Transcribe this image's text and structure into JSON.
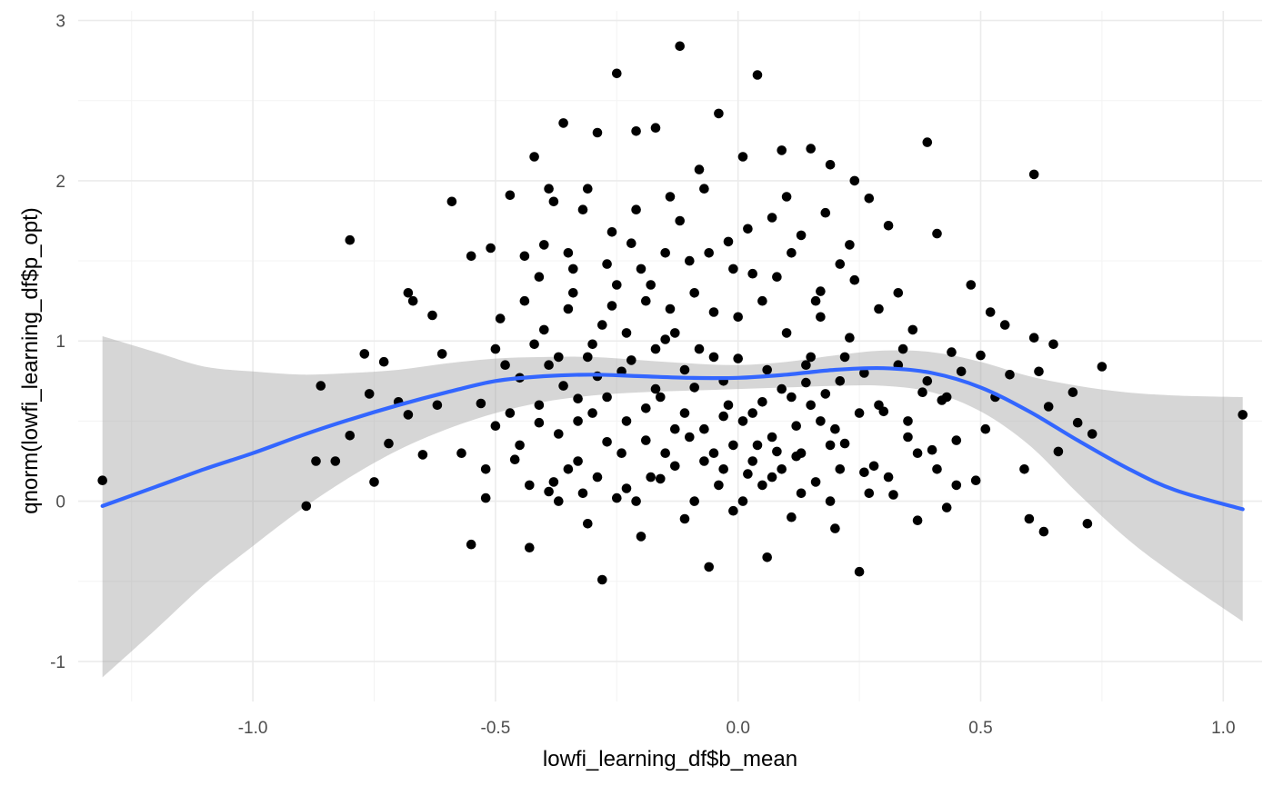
{
  "chart_data": {
    "type": "scatter",
    "title": "",
    "xlabel": "lowfi_learning_df$b_mean",
    "ylabel": "qnorm(lowfi_learning_df$p_opt)",
    "xlim": [
      -1.36,
      1.08
    ],
    "ylim": [
      -1.25,
      3.06
    ],
    "x_ticks": [
      -1.0,
      -0.5,
      0.0,
      0.5,
      1.0
    ],
    "x_tick_labels": [
      "-1.0",
      "-0.5",
      "0.0",
      "0.5",
      "1.0"
    ],
    "y_ticks": [
      -1,
      0,
      1,
      2,
      3
    ],
    "y_tick_labels": [
      "-1",
      "0",
      "1",
      "2",
      "3"
    ],
    "grid": true,
    "legend": "none",
    "colors": {
      "points": "#000000",
      "smooth_line": "#3366ff",
      "confidence_band": "#999999"
    },
    "smooth": {
      "method": "loess",
      "x": [
        -1.31,
        -1.2,
        -1.1,
        -1.0,
        -0.9,
        -0.8,
        -0.7,
        -0.6,
        -0.5,
        -0.4,
        -0.3,
        -0.2,
        -0.1,
        0.0,
        0.1,
        0.2,
        0.3,
        0.4,
        0.5,
        0.6,
        0.7,
        0.8,
        0.9,
        1.04
      ],
      "y": [
        -0.03,
        0.09,
        0.2,
        0.3,
        0.41,
        0.51,
        0.6,
        0.68,
        0.75,
        0.78,
        0.79,
        0.78,
        0.77,
        0.77,
        0.79,
        0.82,
        0.83,
        0.8,
        0.71,
        0.56,
        0.38,
        0.21,
        0.07,
        -0.05
      ],
      "lower": [
        -1.1,
        -0.8,
        -0.52,
        -0.28,
        -0.05,
        0.15,
        0.32,
        0.45,
        0.55,
        0.62,
        0.66,
        0.68,
        0.69,
        0.7,
        0.71,
        0.72,
        0.72,
        0.68,
        0.56,
        0.35,
        0.05,
        -0.23,
        -0.46,
        -0.75
      ],
      "upper": [
        1.03,
        0.93,
        0.84,
        0.81,
        0.79,
        0.8,
        0.82,
        0.86,
        0.89,
        0.9,
        0.9,
        0.88,
        0.86,
        0.85,
        0.87,
        0.91,
        0.94,
        0.93,
        0.87,
        0.78,
        0.72,
        0.68,
        0.66,
        0.65
      ]
    },
    "points": [
      {
        "x": -1.31,
        "y": 0.13
      },
      {
        "x": -0.89,
        "y": -0.03
      },
      {
        "x": -0.86,
        "y": 0.72
      },
      {
        "x": -0.8,
        "y": 1.63
      },
      {
        "x": -0.87,
        "y": 0.25
      },
      {
        "x": -0.83,
        "y": 0.25
      },
      {
        "x": -0.8,
        "y": 0.41
      },
      {
        "x": -0.77,
        "y": 0.92
      },
      {
        "x": -0.76,
        "y": 0.67
      },
      {
        "x": -0.75,
        "y": 0.12
      },
      {
        "x": -0.73,
        "y": 0.87
      },
      {
        "x": -0.72,
        "y": 0.36
      },
      {
        "x": -0.7,
        "y": 0.62
      },
      {
        "x": -0.68,
        "y": 0.54
      },
      {
        "x": -0.68,
        "y": 1.3
      },
      {
        "x": -0.67,
        "y": 1.25
      },
      {
        "x": -0.65,
        "y": 0.29
      },
      {
        "x": -0.63,
        "y": 1.16
      },
      {
        "x": -0.62,
        "y": 0.6
      },
      {
        "x": -0.61,
        "y": 0.92
      },
      {
        "x": -0.59,
        "y": 1.87
      },
      {
        "x": -0.57,
        "y": 0.3
      },
      {
        "x": -0.55,
        "y": 1.53
      },
      {
        "x": -0.55,
        "y": -0.27
      },
      {
        "x": -0.53,
        "y": 0.61
      },
      {
        "x": -0.52,
        "y": 0.02
      },
      {
        "x": -0.51,
        "y": 1.58
      },
      {
        "x": -0.5,
        "y": 0.47
      },
      {
        "x": -0.49,
        "y": 1.14
      },
      {
        "x": -0.47,
        "y": 1.91
      },
      {
        "x": -0.46,
        "y": 0.26
      },
      {
        "x": -0.45,
        "y": 0.77
      },
      {
        "x": -0.44,
        "y": 1.53
      },
      {
        "x": -0.43,
        "y": -0.29
      },
      {
        "x": -0.42,
        "y": 2.15
      },
      {
        "x": -0.41,
        "y": 0.49
      },
      {
        "x": -0.4,
        "y": 1.07
      },
      {
        "x": -0.39,
        "y": 0.06
      },
      {
        "x": -0.38,
        "y": 1.87
      },
      {
        "x": -0.37,
        "y": 0.9
      },
      {
        "x": -0.36,
        "y": 2.36
      },
      {
        "x": -0.35,
        "y": 0.2
      },
      {
        "x": -0.34,
        "y": 1.45
      },
      {
        "x": -0.33,
        "y": 0.64
      },
      {
        "x": -0.32,
        "y": 1.82
      },
      {
        "x": -0.31,
        "y": -0.14
      },
      {
        "x": -0.3,
        "y": 0.98
      },
      {
        "x": -0.29,
        "y": 2.3
      },
      {
        "x": -0.28,
        "y": -0.49
      },
      {
        "x": -0.27,
        "y": 0.37
      },
      {
        "x": -0.26,
        "y": 1.22
      },
      {
        "x": -0.25,
        "y": 2.67
      },
      {
        "x": -0.24,
        "y": 0.81
      },
      {
        "x": -0.23,
        "y": 0.08
      },
      {
        "x": -0.22,
        "y": 1.61
      },
      {
        "x": -0.21,
        "y": 2.31
      },
      {
        "x": -0.2,
        "y": -0.22
      },
      {
        "x": -0.19,
        "y": 0.58
      },
      {
        "x": -0.18,
        "y": 1.35
      },
      {
        "x": -0.17,
        "y": 2.33
      },
      {
        "x": -0.16,
        "y": 0.14
      },
      {
        "x": -0.15,
        "y": 1.01
      },
      {
        "x": -0.14,
        "y": 1.9
      },
      {
        "x": -0.13,
        "y": 0.45
      },
      {
        "x": -0.12,
        "y": 2.84
      },
      {
        "x": -0.11,
        "y": -0.11
      },
      {
        "x": -0.1,
        "y": 1.5
      },
      {
        "x": -0.09,
        "y": 0.71
      },
      {
        "x": -0.08,
        "y": 2.07
      },
      {
        "x": -0.07,
        "y": 0.25
      },
      {
        "x": -0.06,
        "y": -0.41
      },
      {
        "x": -0.05,
        "y": 1.18
      },
      {
        "x": -0.04,
        "y": 2.42
      },
      {
        "x": -0.03,
        "y": 0.53
      },
      {
        "x": -0.02,
        "y": 1.62
      },
      {
        "x": -0.01,
        "y": -0.06
      },
      {
        "x": 0.0,
        "y": 0.89
      },
      {
        "x": 0.01,
        "y": 2.15
      },
      {
        "x": 0.02,
        "y": 0.17
      },
      {
        "x": 0.03,
        "y": 1.42
      },
      {
        "x": 0.04,
        "y": 2.66
      },
      {
        "x": 0.05,
        "y": 0.62
      },
      {
        "x": 0.06,
        "y": -0.35
      },
      {
        "x": 0.07,
        "y": 1.77
      },
      {
        "x": 0.08,
        "y": 0.31
      },
      {
        "x": 0.09,
        "y": 2.19
      },
      {
        "x": 0.1,
        "y": 1.05
      },
      {
        "x": 0.11,
        "y": -0.1
      },
      {
        "x": 0.12,
        "y": 0.47
      },
      {
        "x": 0.13,
        "y": 1.66
      },
      {
        "x": 0.14,
        "y": 0.85
      },
      {
        "x": 0.15,
        "y": 2.2
      },
      {
        "x": 0.16,
        "y": 0.12
      },
      {
        "x": 0.17,
        "y": 1.31
      },
      {
        "x": 0.18,
        "y": 0.67
      },
      {
        "x": 0.19,
        "y": 2.1
      },
      {
        "x": 0.2,
        "y": -0.17
      },
      {
        "x": 0.21,
        "y": 1.48
      },
      {
        "x": 0.22,
        "y": 0.36
      },
      {
        "x": 0.23,
        "y": 1.02
      },
      {
        "x": 0.24,
        "y": 2.0
      },
      {
        "x": 0.25,
        "y": -0.44
      },
      {
        "x": 0.26,
        "y": 0.8
      },
      {
        "x": 0.27,
        "y": 1.89
      },
      {
        "x": 0.28,
        "y": 0.22
      },
      {
        "x": 0.29,
        "y": 1.2
      },
      {
        "x": 0.3,
        "y": 0.56
      },
      {
        "x": 0.31,
        "y": 1.72
      },
      {
        "x": 0.32,
        "y": 0.04
      },
      {
        "x": 0.33,
        "y": 1.3
      },
      {
        "x": 0.34,
        "y": 0.95
      },
      {
        "x": 0.35,
        "y": 0.4
      },
      {
        "x": 0.36,
        "y": 1.07
      },
      {
        "x": 0.37,
        "y": -0.12
      },
      {
        "x": 0.38,
        "y": 0.68
      },
      {
        "x": 0.39,
        "y": 2.24
      },
      {
        "x": 0.4,
        "y": 0.32
      },
      {
        "x": 0.41,
        "y": 1.67
      },
      {
        "x": 0.42,
        "y": 0.63
      },
      {
        "x": 0.43,
        "y": -0.04
      },
      {
        "x": 0.44,
        "y": 0.93
      },
      {
        "x": 0.45,
        "y": 0.38
      },
      {
        "x": 0.46,
        "y": 0.81
      },
      {
        "x": 0.48,
        "y": 1.35
      },
      {
        "x": 0.49,
        "y": 0.13
      },
      {
        "x": 0.5,
        "y": 0.91
      },
      {
        "x": 0.51,
        "y": 0.45
      },
      {
        "x": 0.52,
        "y": 1.18
      },
      {
        "x": 0.53,
        "y": 0.65
      },
      {
        "x": 0.55,
        "y": 1.1
      },
      {
        "x": 0.56,
        "y": 0.79
      },
      {
        "x": 0.59,
        "y": 0.2
      },
      {
        "x": 0.6,
        "y": -0.11
      },
      {
        "x": 0.61,
        "y": 2.04
      },
      {
        "x": 0.61,
        "y": 1.02
      },
      {
        "x": 0.62,
        "y": 0.81
      },
      {
        "x": 0.63,
        "y": -0.19
      },
      {
        "x": 0.64,
        "y": 0.59
      },
      {
        "x": 0.65,
        "y": 0.98
      },
      {
        "x": 0.66,
        "y": 0.31
      },
      {
        "x": 0.69,
        "y": 0.68
      },
      {
        "x": 0.7,
        "y": 0.49
      },
      {
        "x": 0.72,
        "y": -0.14
      },
      {
        "x": 0.73,
        "y": 0.42
      },
      {
        "x": 0.75,
        "y": 0.84
      },
      {
        "x": 1.04,
        "y": 0.54
      },
      {
        "x": -0.45,
        "y": 0.35
      },
      {
        "x": -0.42,
        "y": 0.98
      },
      {
        "x": -0.4,
        "y": 1.6
      },
      {
        "x": -0.38,
        "y": 0.12
      },
      {
        "x": -0.36,
        "y": 0.72
      },
      {
        "x": -0.34,
        "y": 1.3
      },
      {
        "x": -0.32,
        "y": 0.05
      },
      {
        "x": -0.3,
        "y": 0.55
      },
      {
        "x": -0.28,
        "y": 1.1
      },
      {
        "x": -0.26,
        "y": 1.68
      },
      {
        "x": -0.24,
        "y": 0.3
      },
      {
        "x": -0.22,
        "y": 0.88
      },
      {
        "x": -0.2,
        "y": 1.45
      },
      {
        "x": -0.18,
        "y": 0.15
      },
      {
        "x": -0.16,
        "y": 0.65
      },
      {
        "x": -0.14,
        "y": 1.2
      },
      {
        "x": -0.12,
        "y": 1.75
      },
      {
        "x": -0.1,
        "y": 0.4
      },
      {
        "x": -0.08,
        "y": 0.95
      },
      {
        "x": -0.06,
        "y": 1.55
      },
      {
        "x": -0.04,
        "y": 0.1
      },
      {
        "x": -0.02,
        "y": 0.6
      },
      {
        "x": 0.0,
        "y": 1.15
      },
      {
        "x": 0.02,
        "y": 1.7
      },
      {
        "x": 0.04,
        "y": 0.35
      },
      {
        "x": 0.06,
        "y": 0.82
      },
      {
        "x": 0.08,
        "y": 1.4
      },
      {
        "x": 0.1,
        "y": 1.9
      },
      {
        "x": 0.12,
        "y": 0.28
      },
      {
        "x": 0.14,
        "y": 0.74
      },
      {
        "x": 0.16,
        "y": 1.25
      },
      {
        "x": 0.18,
        "y": 1.8
      },
      {
        "x": 0.2,
        "y": 0.45
      },
      {
        "x": 0.22,
        "y": 0.9
      },
      {
        "x": 0.24,
        "y": 1.38
      },
      {
        "x": 0.26,
        "y": 0.18
      },
      {
        "x": -0.48,
        "y": 0.85
      },
      {
        "x": -0.44,
        "y": 1.25
      },
      {
        "x": -0.41,
        "y": 0.6
      },
      {
        "x": -0.39,
        "y": 1.95
      },
      {
        "x": -0.37,
        "y": 0.42
      },
      {
        "x": -0.35,
        "y": 1.55
      },
      {
        "x": -0.33,
        "y": 0.25
      },
      {
        "x": -0.31,
        "y": 1.95
      },
      {
        "x": -0.29,
        "y": 0.78
      },
      {
        "x": -0.27,
        "y": 1.48
      },
      {
        "x": -0.25,
        "y": 0.02
      },
      {
        "x": -0.23,
        "y": 1.05
      },
      {
        "x": -0.21,
        "y": 1.82
      },
      {
        "x": -0.19,
        "y": 0.38
      },
      {
        "x": -0.17,
        "y": 0.95
      },
      {
        "x": -0.15,
        "y": 1.55
      },
      {
        "x": -0.13,
        "y": 0.22
      },
      {
        "x": -0.11,
        "y": 0.82
      },
      {
        "x": -0.09,
        "y": 1.3
      },
      {
        "x": -0.07,
        "y": 1.95
      },
      {
        "x": -0.05,
        "y": 0.3
      },
      {
        "x": -0.03,
        "y": 0.75
      },
      {
        "x": -0.01,
        "y": 1.45
      },
      {
        "x": 0.01,
        "y": 0.0
      },
      {
        "x": 0.03,
        "y": 0.55
      },
      {
        "x": 0.05,
        "y": 1.25
      },
      {
        "x": 0.07,
        "y": 0.15
      },
      {
        "x": 0.09,
        "y": 0.7
      },
      {
        "x": 0.11,
        "y": 1.55
      },
      {
        "x": 0.13,
        "y": 0.05
      },
      {
        "x": 0.15,
        "y": 0.6
      },
      {
        "x": 0.17,
        "y": 1.15
      },
      {
        "x": 0.19,
        "y": 0.35
      },
      {
        "x": 0.21,
        "y": 0.75
      },
      {
        "x": 0.23,
        "y": 1.6
      },
      {
        "x": 0.25,
        "y": 0.55
      },
      {
        "x": -0.52,
        "y": 0.2
      },
      {
        "x": -0.5,
        "y": 0.95
      },
      {
        "x": -0.47,
        "y": 0.55
      },
      {
        "x": -0.43,
        "y": 0.1
      },
      {
        "x": -0.41,
        "y": 1.4
      },
      {
        "x": -0.39,
        "y": 0.85
      },
      {
        "x": -0.37,
        "y": 0.0
      },
      {
        "x": -0.35,
        "y": 1.2
      },
      {
        "x": -0.33,
        "y": 0.5
      },
      {
        "x": -0.31,
        "y": 0.9
      },
      {
        "x": -0.29,
        "y": 0.15
      },
      {
        "x": -0.27,
        "y": 0.65
      },
      {
        "x": -0.25,
        "y": 1.35
      },
      {
        "x": -0.23,
        "y": 0.5
      },
      {
        "x": -0.21,
        "y": 0.0
      },
      {
        "x": -0.19,
        "y": 1.25
      },
      {
        "x": -0.17,
        "y": 0.7
      },
      {
        "x": -0.15,
        "y": 0.3
      },
      {
        "x": -0.13,
        "y": 1.05
      },
      {
        "x": -0.11,
        "y": 0.55
      },
      {
        "x": -0.09,
        "y": 0.0
      },
      {
        "x": -0.07,
        "y": 0.45
      },
      {
        "x": -0.05,
        "y": 0.9
      },
      {
        "x": -0.03,
        "y": 0.2
      },
      {
        "x": -0.01,
        "y": 0.35
      },
      {
        "x": 0.01,
        "y": 0.5
      },
      {
        "x": 0.03,
        "y": 0.25
      },
      {
        "x": 0.05,
        "y": 0.1
      },
      {
        "x": 0.07,
        "y": 0.4
      },
      {
        "x": 0.09,
        "y": 0.2
      },
      {
        "x": 0.11,
        "y": 0.65
      },
      {
        "x": 0.13,
        "y": 0.3
      },
      {
        "x": 0.15,
        "y": 0.9
      },
      {
        "x": 0.17,
        "y": 0.5
      },
      {
        "x": 0.19,
        "y": 0.0
      },
      {
        "x": 0.21,
        "y": 0.2
      },
      {
        "x": 0.27,
        "y": 0.05
      },
      {
        "x": 0.29,
        "y": 0.6
      },
      {
        "x": 0.31,
        "y": 0.15
      },
      {
        "x": 0.33,
        "y": 0.85
      },
      {
        "x": 0.35,
        "y": 0.5
      },
      {
        "x": 0.37,
        "y": 0.3
      },
      {
        "x": 0.39,
        "y": 0.75
      },
      {
        "x": 0.41,
        "y": 0.2
      },
      {
        "x": 0.43,
        "y": 0.65
      },
      {
        "x": 0.45,
        "y": 0.1
      }
    ]
  }
}
